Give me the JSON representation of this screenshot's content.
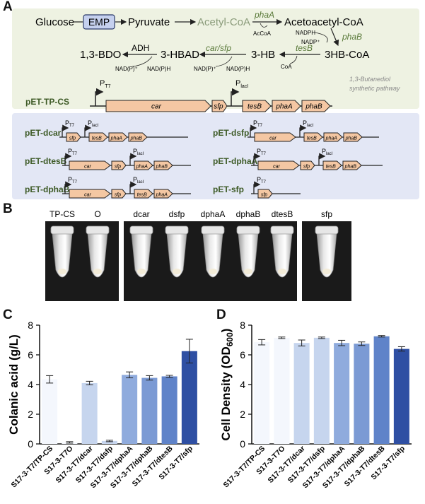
{
  "panel_letters": {
    "a": "A",
    "b": "B",
    "c": "C",
    "d": "D"
  },
  "pathway": {
    "glucose": "Glucose",
    "emp": "EMP",
    "pyruvate": "Pyruvate",
    "acetyl_coa": "Acetyl-CoA",
    "phaA": "phaA",
    "acoa": "AcCoA",
    "acetoacetyl_coa": "Acetoacetyl-CoA",
    "nadph": "NADPH",
    "nadp": "NADP⁺",
    "phaB": "phaB",
    "hb_coa": "3HB-CoA",
    "tesB": "tesB",
    "coa": "CoA",
    "hb": "3-HB",
    "carsfp": "car/sfp",
    "nadp_out": "NAD(P)⁺",
    "nadph_in": "NAD(P)H",
    "hbad": "3-HBAD",
    "adh": "ADH",
    "nadp_out2": "NAD(P)⁺",
    "nadph_in2": "NAD(P)H",
    "bdo": "1,3-BDO",
    "caption_line1": "1,3-Butanediol",
    "caption_line2": "synthetic pathway"
  },
  "main_plasmid": {
    "name": "pET-TP-CS",
    "promoter1": "P",
    "promoter1_sub": "T7",
    "promoter2": "P",
    "promoter2_sub": "lacI",
    "genes": [
      "car",
      "sfp",
      "tesB",
      "phaA",
      "phaB"
    ]
  },
  "plasmids": [
    {
      "name": "pET-dcar",
      "genes1": [
        "sfp"
      ],
      "genes2": [
        "tesB",
        "phaA",
        "phaB"
      ]
    },
    {
      "name": "pET-dsfp",
      "genes1": [
        "car"
      ],
      "genes2": [
        "tesB",
        "phaA",
        "phaB"
      ]
    },
    {
      "name": "pET-dtesB",
      "genes1": [
        "car",
        "sfp"
      ],
      "genes2": [
        "phaA",
        "phaB"
      ]
    },
    {
      "name": "pET-dphaA",
      "genes1": [
        "car",
        "sfp"
      ],
      "genes2": [
        "tesB",
        "phaB"
      ]
    },
    {
      "name": "pET-dphaB",
      "genes1": [
        "car",
        "sfp"
      ],
      "genes2": [
        "tesB",
        "phaA"
      ]
    },
    {
      "name": "pET-sfp",
      "genes1": [
        "sfp"
      ],
      "genes2": []
    }
  ],
  "promoter_labels": {
    "p": "P",
    "t7": "T7",
    "lac": "lacI"
  },
  "tube_labels": [
    "TP-CS",
    "O",
    "dcar",
    "dsfp",
    "dphaA",
    "dphaB",
    "dtesB",
    "sfp"
  ],
  "chart_data": [
    {
      "type": "bar",
      "ylabel": "Colanic acid (g/L)",
      "ylim": [
        0,
        8
      ],
      "yticks": [
        "0",
        "2",
        "4",
        "6",
        "8"
      ],
      "categories": [
        "S17-3-T7/TP-CS",
        "S17-3-T7O",
        "S17-3-T7/dcar",
        "S17-3-T7/dsfp",
        "S17-3-T7/dphaA",
        "S17-3-T7/dphaB",
        "S17-3-T7/dtesB",
        "S17-3-T7/sfp"
      ],
      "values": [
        4.35,
        0.1,
        4.1,
        0.2,
        4.65,
        4.45,
        4.55,
        6.25
      ],
      "errors": [
        0.25,
        0.05,
        0.12,
        0.05,
        0.2,
        0.15,
        0.07,
        0.8
      ],
      "colors": [
        "#f4f7fd",
        "#f4f7fd",
        "#c6d5ee",
        "#c6d5ee",
        "#8fabdd",
        "#7b9ad4",
        "#5f83c9",
        "#2e4fa3"
      ]
    },
    {
      "type": "bar",
      "ylabel": "Cell Density (OD",
      "ylabel_sub": "600",
      "ylabel_end": ")",
      "ylim": [
        0,
        8
      ],
      "yticks": [
        "0",
        "2",
        "4",
        "6",
        "8"
      ],
      "categories": [
        "S17-3-T7/TP-CS",
        "S17-3-T7O",
        "S17-3-T7/dcar",
        "S17-3-T7/dsfp",
        "S17-3-T7/dphaA",
        "S17-3-T7/dphaB",
        "S17-3-T7/dtesB",
        "S17-3-T7/sfp"
      ],
      "values": [
        6.85,
        7.15,
        6.8,
        7.15,
        6.8,
        6.75,
        7.25,
        6.4
      ],
      "errors": [
        0.18,
        0.05,
        0.2,
        0.05,
        0.18,
        0.12,
        0.05,
        0.15
      ],
      "colors": [
        "#f4f7fd",
        "#f4f7fd",
        "#c6d5ee",
        "#c6d5ee",
        "#8fabdd",
        "#7b9ad4",
        "#5f83c9",
        "#2e4fa3"
      ]
    }
  ]
}
